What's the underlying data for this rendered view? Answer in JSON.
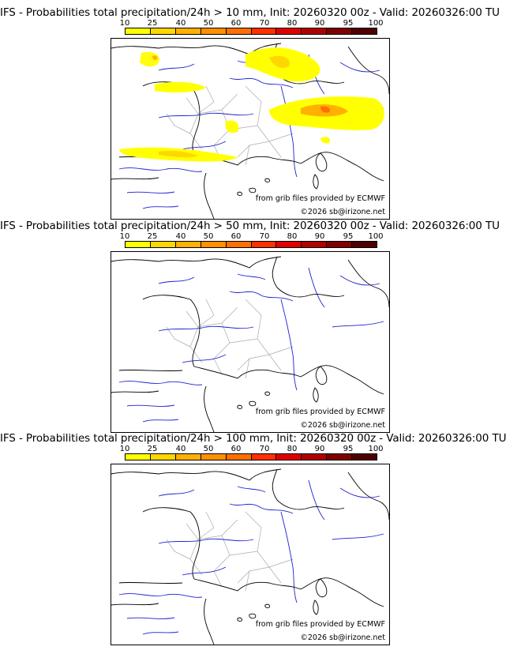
{
  "colorbar": {
    "ticks": [
      "10",
      "25",
      "40",
      "50",
      "60",
      "70",
      "80",
      "90",
      "95",
      "100"
    ],
    "colors": [
      "#ffff00",
      "#ffd700",
      "#ffb000",
      "#ff9000",
      "#ff7000",
      "#ff3000",
      "#e00000",
      "#b00000",
      "#800000",
      "#500000"
    ]
  },
  "panels": [
    {
      "title": "IFS - Probabilities total precipitation/24h > 10 mm, Init: 20260320 00z - Valid: 20260326:00 TU"
    },
    {
      "title": "IFS - Probabilities total precipitation/24h > 50 mm, Init: 20260320 00z - Valid: 20260326:00 TU"
    },
    {
      "title": "IFS - Probabilities total precipitation/24h > 100 mm, Init: 20260320 00z - Valid: 20260326:00 TU"
    }
  ],
  "credits": {
    "source": "from grib files provided by ECMWF",
    "copyright": "©2026 sb@irizone.net"
  },
  "map_colors": {
    "rivers": "#2020d0",
    "coast": "#000000",
    "regions": "#aaaaaa"
  }
}
